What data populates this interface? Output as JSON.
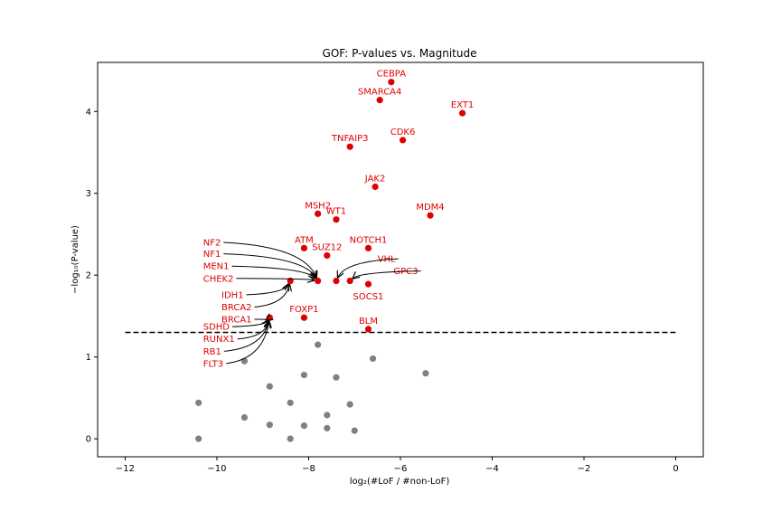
{
  "chart_data": {
    "type": "scatter",
    "title": "GOF: P-values vs. Magnitude",
    "xlabel": "log₂(#LoF / #non-LoF)",
    "ylabel": "−log₁₀(P-value)",
    "xlim": [
      -12.6,
      0.6
    ],
    "ylim": [
      -0.22,
      4.6
    ],
    "xticks": [
      -12,
      -10,
      -8,
      -6,
      -4,
      -2,
      0
    ],
    "xtick_labels": [
      "−12",
      "−10",
      "−8",
      "−6",
      "−4",
      "−2",
      "0"
    ],
    "yticks": [
      0,
      1,
      2,
      3,
      4
    ],
    "ytick_labels": [
      "0",
      "1",
      "2",
      "3",
      "4"
    ],
    "grid": false,
    "threshold": {
      "y": 1.3,
      "x_range": [
        -12,
        0
      ],
      "style": "dashed"
    },
    "colors": {
      "significant": "#e00000",
      "nonsignificant": "#808080",
      "threshold": "#000000"
    },
    "significant_points": [
      {
        "x": -6.2,
        "y": 4.36
      },
      {
        "x": -6.45,
        "y": 4.14
      },
      {
        "x": -4.65,
        "y": 3.98
      },
      {
        "x": -7.1,
        "y": 3.57
      },
      {
        "x": -5.95,
        "y": 3.65
      },
      {
        "x": -6.55,
        "y": 3.08
      },
      {
        "x": -7.8,
        "y": 2.75
      },
      {
        "x": -7.4,
        "y": 2.68
      },
      {
        "x": -5.35,
        "y": 2.73
      },
      {
        "x": -8.1,
        "y": 2.33
      },
      {
        "x": -7.6,
        "y": 2.24
      },
      {
        "x": -6.7,
        "y": 2.33
      },
      {
        "x": -7.8,
        "y": 1.93
      },
      {
        "x": -7.4,
        "y": 1.93
      },
      {
        "x": -7.1,
        "y": 1.93
      },
      {
        "x": -6.7,
        "y": 1.89
      },
      {
        "x": -8.4,
        "y": 1.93
      },
      {
        "x": -8.1,
        "y": 1.48
      },
      {
        "x": -8.85,
        "y": 1.48
      },
      {
        "x": -6.7,
        "y": 1.34
      }
    ],
    "nonsignificant_points": [
      {
        "x": -7.8,
        "y": 1.15
      },
      {
        "x": -9.4,
        "y": 0.95
      },
      {
        "x": -6.6,
        "y": 0.98
      },
      {
        "x": -5.45,
        "y": 0.8
      },
      {
        "x": -8.1,
        "y": 0.78
      },
      {
        "x": -7.4,
        "y": 0.75
      },
      {
        "x": -8.85,
        "y": 0.64
      },
      {
        "x": -10.4,
        "y": 0.44
      },
      {
        "x": -8.4,
        "y": 0.44
      },
      {
        "x": -7.1,
        "y": 0.42
      },
      {
        "x": -9.4,
        "y": 0.26
      },
      {
        "x": -7.6,
        "y": 0.29
      },
      {
        "x": -8.85,
        "y": 0.17
      },
      {
        "x": -8.1,
        "y": 0.16
      },
      {
        "x": -7.6,
        "y": 0.13
      },
      {
        "x": -7.0,
        "y": 0.1
      },
      {
        "x": -10.4,
        "y": 0.0
      },
      {
        "x": -8.4,
        "y": 0.0
      }
    ],
    "direct_labels": [
      {
        "text": "CEBPA",
        "x": -6.2,
        "y": 4.36
      },
      {
        "text": "SMARCA4",
        "x": -6.45,
        "y": 4.14
      },
      {
        "text": "EXT1",
        "x": -4.65,
        "y": 3.98
      },
      {
        "text": "TNFAIP3",
        "x": -7.1,
        "y": 3.57
      },
      {
        "text": "CDK6",
        "x": -5.95,
        "y": 3.65
      },
      {
        "text": "JAK2",
        "x": -6.55,
        "y": 3.08
      },
      {
        "text": "MSH2",
        "x": -7.8,
        "y": 2.75
      },
      {
        "text": "WT1",
        "x": -7.4,
        "y": 2.68
      },
      {
        "text": "MDM4",
        "x": -5.35,
        "y": 2.73
      },
      {
        "text": "ATM",
        "x": -8.1,
        "y": 2.33
      },
      {
        "text": "SUZ12",
        "x": -7.6,
        "y": 2.24
      },
      {
        "text": "NOTCH1",
        "x": -6.7,
        "y": 2.33
      },
      {
        "text": "FOXP1",
        "x": -8.1,
        "y": 1.48
      },
      {
        "text": "BLM",
        "x": -6.7,
        "y": 1.34
      }
    ],
    "below_labels": [
      {
        "text": "SOCS1",
        "x": -6.7,
        "y": 1.89
      }
    ],
    "arrow_labels": [
      {
        "text": "NF2",
        "tx": -10.3,
        "ty": 2.4,
        "px": -7.8,
        "py": 1.93
      },
      {
        "text": "NF1",
        "tx": -10.3,
        "ty": 2.26,
        "px": -7.8,
        "py": 1.93
      },
      {
        "text": "MEN1",
        "tx": -10.3,
        "ty": 2.11,
        "px": -7.8,
        "py": 1.93
      },
      {
        "text": "CHEK2",
        "tx": -10.3,
        "ty": 1.96,
        "px": -7.8,
        "py": 1.93
      },
      {
        "text": "VHL",
        "tx": -6.5,
        "ty": 2.2,
        "px": -7.4,
        "py": 1.93
      },
      {
        "text": "GPC3",
        "tx": -6.15,
        "ty": 2.05,
        "px": -7.1,
        "py": 1.93
      },
      {
        "text": "IDH1",
        "tx": -9.9,
        "ty": 1.76,
        "px": -8.4,
        "py": 1.93
      },
      {
        "text": "BRCA2",
        "tx": -9.9,
        "ty": 1.61,
        "px": -8.4,
        "py": 1.93
      },
      {
        "text": "BRCA1",
        "tx": -9.9,
        "ty": 1.46,
        "px": -8.85,
        "py": 1.48
      },
      {
        "text": "SDHD",
        "tx": -10.3,
        "ty": 1.37,
        "px": -8.85,
        "py": 1.48
      },
      {
        "text": "RUNX1",
        "tx": -10.3,
        "ty": 1.22,
        "px": -8.85,
        "py": 1.48
      },
      {
        "text": "RB1",
        "tx": -10.3,
        "ty": 1.07,
        "px": -8.85,
        "py": 1.48
      },
      {
        "text": "FLT3",
        "tx": -10.3,
        "ty": 0.92,
        "px": -8.85,
        "py": 1.48
      }
    ]
  }
}
